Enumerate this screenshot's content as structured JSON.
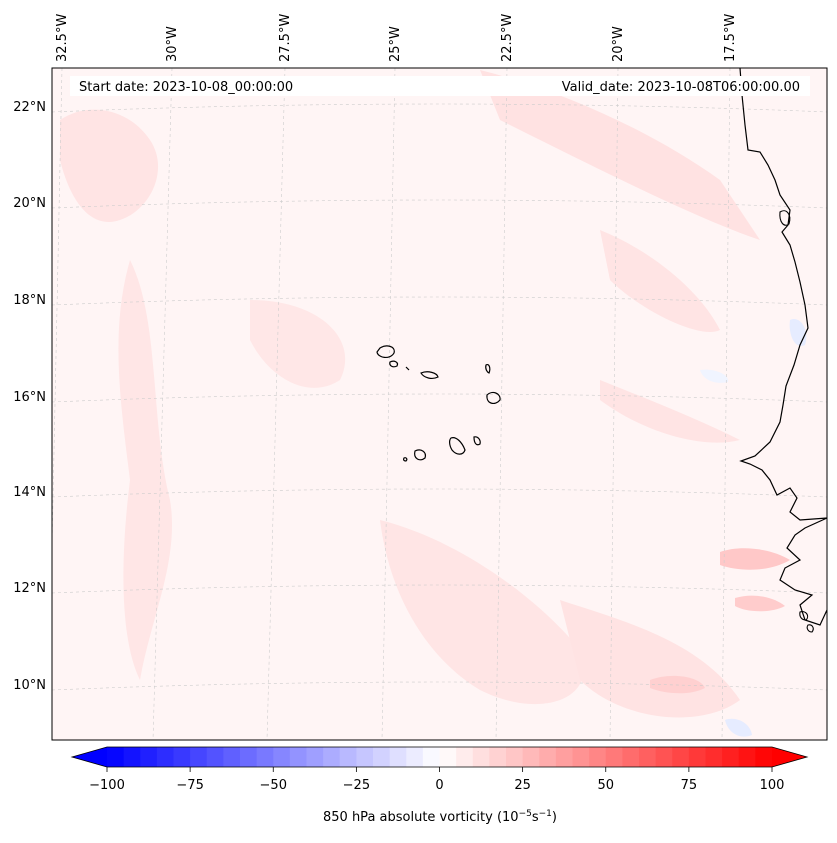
{
  "header": {
    "start_date": "Start date: 2023-10-08_00:00:00",
    "valid_date": "Valid_date: 2023-10-08T06:00:00.00"
  },
  "longitude_labels": [
    "32.5°W",
    "30°W",
    "27.5°W",
    "25°W",
    "22.5°W",
    "20°W",
    "17.5°W"
  ],
  "latitude_labels": [
    "22°N",
    "20°N",
    "18°N",
    "16°N",
    "14°N",
    "12°N",
    "10°N"
  ],
  "colorbar": {
    "label_prefix": "850 hPa absolute vorticity (10",
    "label_exp1": "−5",
    "label_mid": "s",
    "label_exp2": "−1",
    "label_suffix": ")",
    "ticks": [
      "−100",
      "−75",
      "−50",
      "−25",
      "0",
      "25",
      "50",
      "75",
      "100"
    ],
    "min": -100,
    "max": 100,
    "low_color": "#0000ff",
    "mid_color": "#ffffff",
    "high_color": "#ff0000"
  },
  "map": {
    "ocean_base_color": "#fff5f5",
    "coastline_color": "#000000",
    "gridline_color": "#cccccc"
  }
}
